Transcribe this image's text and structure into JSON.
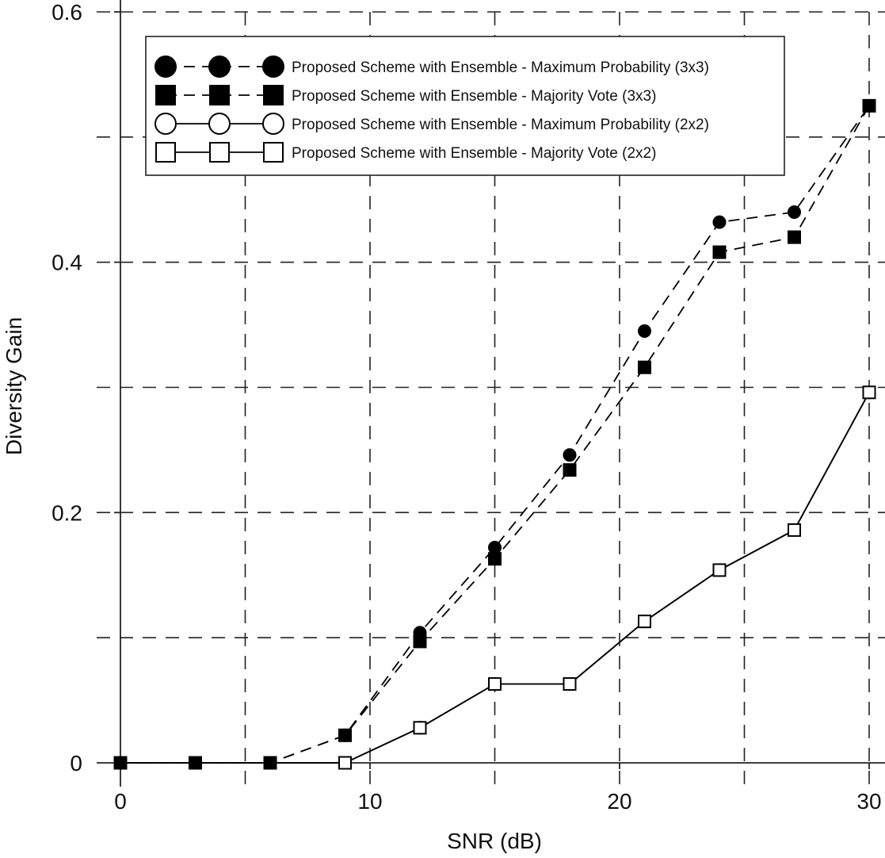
{
  "chart_data": {
    "type": "line",
    "xlabel": "SNR (dB)",
    "ylabel": "Diversity Gain",
    "xlim": [
      0,
      30
    ],
    "ylim": [
      0,
      0.6
    ],
    "xticks": [
      0,
      10,
      20,
      30
    ],
    "xtick_labels": [
      "0",
      "10",
      "20",
      "30"
    ],
    "yticks": [
      0,
      0.2,
      0.4,
      0.6
    ],
    "ytick_labels": [
      "0",
      "0.2",
      "0.4",
      "0.6"
    ],
    "grid": "dashed",
    "legend_position": "top",
    "x": [
      0,
      3,
      6,
      9,
      12,
      15,
      18,
      21,
      24,
      27,
      30
    ],
    "series": [
      {
        "name": "Proposed Scheme with Ensemble - Maximum Probability (3x3)",
        "marker": "filled-circle",
        "line": "dashed",
        "values": [
          0,
          0,
          0,
          0.022,
          0.104,
          0.172,
          0.246,
          0.345,
          0.432,
          0.44,
          0.525
        ]
      },
      {
        "name": "Proposed Scheme with Ensemble - Majority Vote (3x3)",
        "marker": "filled-square",
        "line": "dashed",
        "values": [
          0,
          0,
          0,
          0.022,
          0.097,
          0.163,
          0.234,
          0.316,
          0.408,
          0.42,
          0.525
        ]
      },
      {
        "name": "Proposed Scheme with Ensemble - Maximum Probability (2x2)",
        "marker": "open-circle",
        "line": "solid",
        "values": [
          0,
          0,
          0,
          0,
          0.028,
          0.063,
          0.063,
          0.113,
          0.154,
          0.186,
          0.296
        ]
      },
      {
        "name": "Proposed Scheme with Ensemble - Majority Vote (2x2)",
        "marker": "open-square",
        "line": "solid",
        "values": [
          0,
          0,
          0,
          0,
          0.028,
          0.063,
          0.063,
          0.113,
          0.154,
          0.186,
          0.296
        ]
      }
    ]
  }
}
